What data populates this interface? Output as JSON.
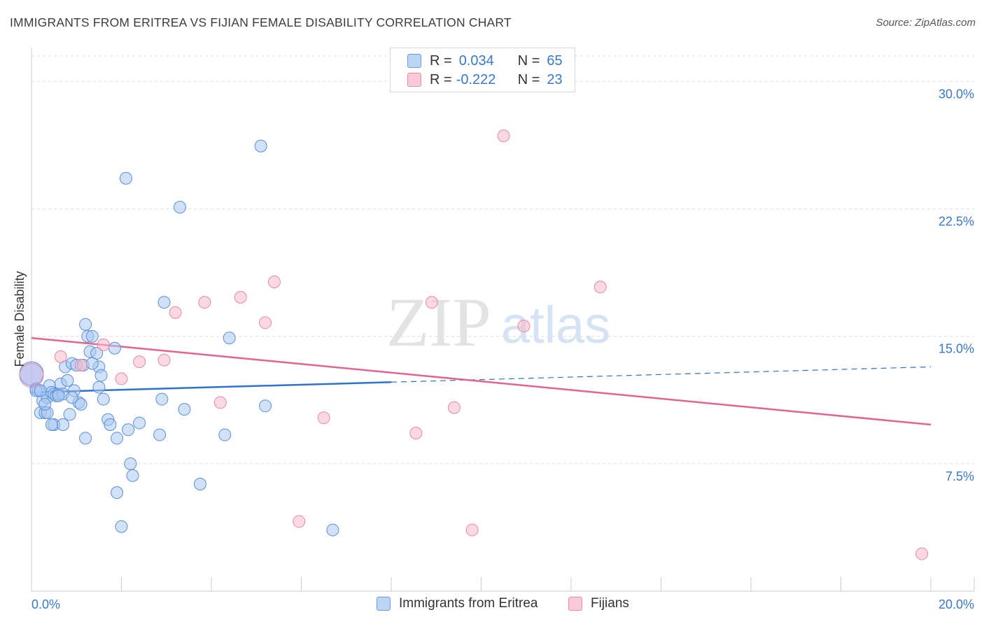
{
  "header": {
    "title": "IMMIGRANTS FROM ERITREA VS FIJIAN FEMALE DISABILITY CORRELATION CHART",
    "source": "Source: ZipAtlas.com"
  },
  "watermark": {
    "zip": "ZIP",
    "atlas": "atlas"
  },
  "legend": {
    "rows": [
      {
        "r_label": "R =",
        "r_value": "0.034",
        "n_label": "N =",
        "n_value": "65"
      },
      {
        "r_label": "R =",
        "r_value": "-0.222",
        "n_label": "N =",
        "n_value": "23"
      }
    ]
  },
  "bottom_legend": {
    "items": [
      {
        "label": "Immigrants from Eritrea"
      },
      {
        "label": "Fijians"
      }
    ]
  },
  "colors": {
    "blue_fill": "#a9c9f2",
    "blue_stroke": "#5b8fd6",
    "blue_line": "#2f72cc",
    "pink_fill": "#f7b9cc",
    "pink_stroke": "#e889a6",
    "pink_line": "#e2648f",
    "axis_text": "#3a78c9",
    "grid": "#dcdcdc"
  },
  "chart_data": {
    "type": "scatter",
    "title": "IMMIGRANTS FROM ERITREA VS FIJIAN FEMALE DISABILITY CORRELATION CHART",
    "xlabel": "",
    "ylabel": "Female Disability",
    "xlim": [
      0,
      20
    ],
    "ylim": [
      0,
      31.5
    ],
    "x_ticks": [
      {
        "value": 0,
        "label": "0.0%"
      },
      {
        "value": 20,
        "label": "20.0%"
      }
    ],
    "y_ticks": [
      {
        "value": 7.5,
        "label": "7.5%"
      },
      {
        "value": 15,
        "label": "15.0%"
      },
      {
        "value": 22.5,
        "label": "22.5%"
      },
      {
        "value": 30,
        "label": "30.0%"
      }
    ],
    "grid": true,
    "legend_position": "top-center",
    "series": [
      {
        "name": "Immigrants from Eritrea",
        "color": "#a9c9f2",
        "r": 0.034,
        "n": 65,
        "trend": {
          "x0": 0,
          "y0": 11.7,
          "x1": 8,
          "y1": 12.3,
          "dashed_to_x": 20,
          "dashed_to_y": 13.2
        },
        "points": [
          [
            0.0,
            12.8
          ],
          [
            0.1,
            11.9
          ],
          [
            0.15,
            11.8
          ],
          [
            0.2,
            10.5
          ],
          [
            0.25,
            11.2
          ],
          [
            0.3,
            10.5
          ],
          [
            0.35,
            11.4
          ],
          [
            0.4,
            12.1
          ],
          [
            0.45,
            11.7
          ],
          [
            0.5,
            11.6
          ],
          [
            0.55,
            11.5
          ],
          [
            0.6,
            11.6
          ],
          [
            0.65,
            12.2
          ],
          [
            0.7,
            11.6
          ],
          [
            0.75,
            13.2
          ],
          [
            0.8,
            12.4
          ],
          [
            0.85,
            10.4
          ],
          [
            0.9,
            13.4
          ],
          [
            0.95,
            11.8
          ],
          [
            1.0,
            13.3
          ],
          [
            1.05,
            11.1
          ],
          [
            1.1,
            11.0
          ],
          [
            1.15,
            13.3
          ],
          [
            1.2,
            15.7
          ],
          [
            1.25,
            15.0
          ],
          [
            1.3,
            14.1
          ],
          [
            1.35,
            15.0
          ],
          [
            1.45,
            14.0
          ],
          [
            1.5,
            13.2
          ],
          [
            1.55,
            12.7
          ],
          [
            1.6,
            11.3
          ],
          [
            1.7,
            10.1
          ],
          [
            1.75,
            9.8
          ],
          [
            1.85,
            14.3
          ],
          [
            1.9,
            9.0
          ],
          [
            2.1,
            24.3
          ],
          [
            2.15,
            9.5
          ],
          [
            2.2,
            7.5
          ],
          [
            2.25,
            6.8
          ],
          [
            2.4,
            9.9
          ],
          [
            2.85,
            9.2
          ],
          [
            2.9,
            11.3
          ],
          [
            2.95,
            17.0
          ],
          [
            3.3,
            22.6
          ],
          [
            3.4,
            10.7
          ],
          [
            3.75,
            6.3
          ],
          [
            4.3,
            9.2
          ],
          [
            4.4,
            14.9
          ],
          [
            5.1,
            26.2
          ],
          [
            5.2,
            10.9
          ],
          [
            6.7,
            3.6
          ],
          [
            2.0,
            3.8
          ],
          [
            1.9,
            5.8
          ],
          [
            0.5,
            9.8
          ],
          [
            0.7,
            9.8
          ],
          [
            1.2,
            9.0
          ],
          [
            0.45,
            9.8
          ],
          [
            0.1,
            11.8
          ],
          [
            0.35,
            10.5
          ],
          [
            0.9,
            11.4
          ],
          [
            0.2,
            11.8
          ],
          [
            1.35,
            13.4
          ],
          [
            1.5,
            12.0
          ],
          [
            0.6,
            11.5
          ],
          [
            0.3,
            11.0
          ]
        ]
      },
      {
        "name": "Fijians",
        "color": "#f7b9cc",
        "r": -0.222,
        "n": 23,
        "trend": {
          "x0": 0,
          "y0": 14.9,
          "x1": 20,
          "y1": 9.8
        },
        "points": [
          [
            0.0,
            12.7
          ],
          [
            0.65,
            13.8
          ],
          [
            1.1,
            13.3
          ],
          [
            1.6,
            14.5
          ],
          [
            2.0,
            12.5
          ],
          [
            2.4,
            13.5
          ],
          [
            2.95,
            13.6
          ],
          [
            3.2,
            16.4
          ],
          [
            3.85,
            17.0
          ],
          [
            4.2,
            11.1
          ],
          [
            4.65,
            17.3
          ],
          [
            5.2,
            15.8
          ],
          [
            5.4,
            18.2
          ],
          [
            6.5,
            10.2
          ],
          [
            5.95,
            4.1
          ],
          [
            8.55,
            9.3
          ],
          [
            8.9,
            17.0
          ],
          [
            9.4,
            10.8
          ],
          [
            9.8,
            3.6
          ],
          [
            10.5,
            26.8
          ],
          [
            10.95,
            15.6
          ],
          [
            12.65,
            17.9
          ],
          [
            19.8,
            2.2
          ]
        ]
      }
    ]
  }
}
